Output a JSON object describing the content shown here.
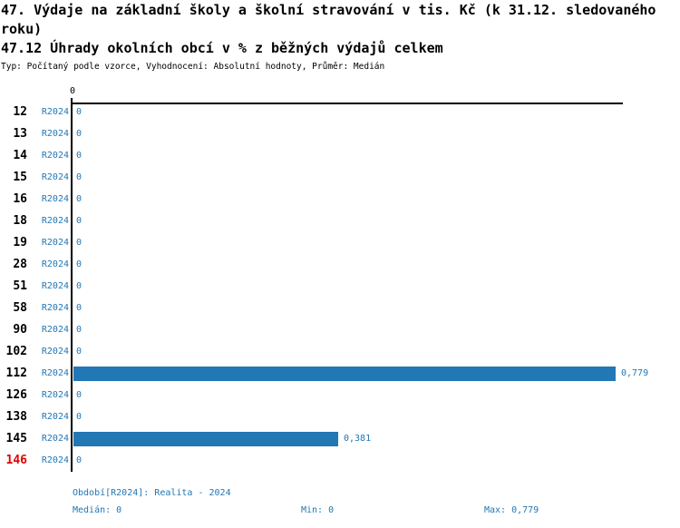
{
  "header": {
    "title": "47. Výdaje na základní školy a školní stravování v tis. Kč (k 31.12. sledovaného roku)",
    "subtitle": "47.12 Úhrady okolních obcí v % z běžných výdajů celkem",
    "meta": "Typ: Počítaný podle vzorce, Vyhodnocení: Absolutní hodnoty, Průměr: Medián"
  },
  "chart_data": {
    "type": "bar",
    "orientation": "horizontal",
    "title": "47.12 Úhrady okolních obcí v % z běžných výdajů celkem",
    "axis_tick_label": "0",
    "series_label": "R2024",
    "categories": [
      "12",
      "13",
      "14",
      "15",
      "16",
      "18",
      "19",
      "28",
      "51",
      "58",
      "90",
      "102",
      "112",
      "126",
      "138",
      "145",
      "146"
    ],
    "values": [
      0,
      0,
      0,
      0,
      0,
      0,
      0,
      0,
      0,
      0,
      0,
      0,
      0.779,
      0,
      0,
      0.381,
      0
    ],
    "value_labels": [
      "0",
      "0",
      "0",
      "0",
      "0",
      "0",
      "0",
      "0",
      "0",
      "0",
      "0",
      "0",
      "0,779",
      "0",
      "0",
      "0,381",
      "0"
    ],
    "highlighted_category": "146",
    "xlim": [
      0,
      0.79
    ],
    "grid": false,
    "legend": false,
    "colors": {
      "bar": "#2277b5",
      "text_blue": "#2277b5",
      "highlight_red": "#e00000",
      "axis_black": "#000000"
    }
  },
  "footer": {
    "period": "Období[R2024]: Realita - 2024",
    "median": "Medián: 0",
    "min": "Min: 0",
    "max": "Max: 0,779"
  }
}
